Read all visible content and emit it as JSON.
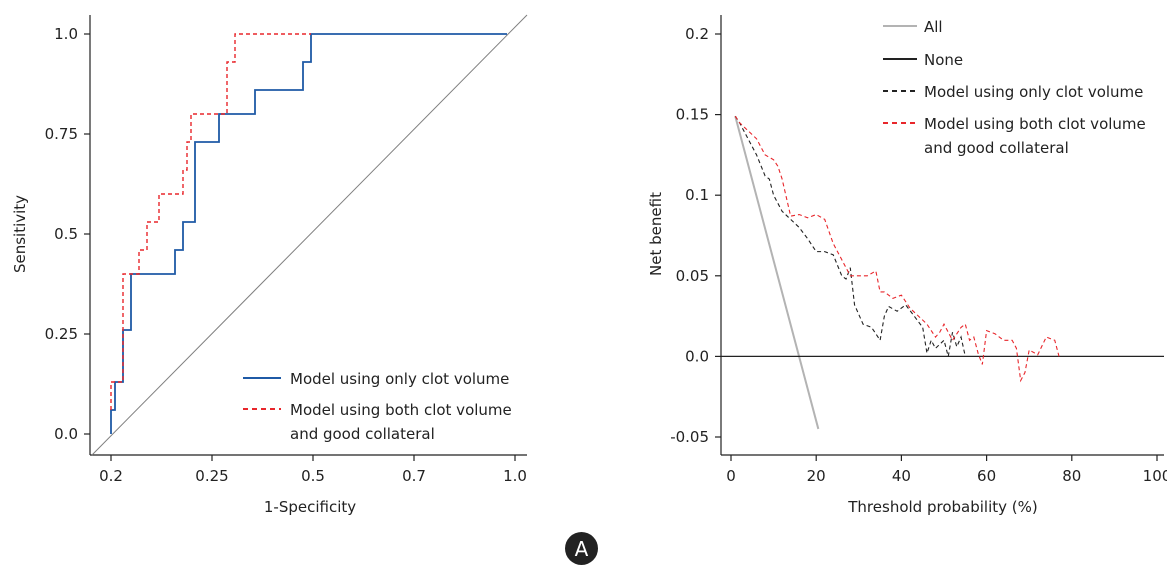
{
  "colors": {
    "roc_only_clot": "#1f5aa6",
    "roc_both": "#e8262b",
    "dca_all": "#b3b3b3",
    "dca_none": "#222222",
    "dca_only_clot": "#222222",
    "dca_both": "#e8262b",
    "diagonal": "#7f7f7f",
    "axis": "#222222"
  },
  "panel_label": "A",
  "chart_data": [
    {
      "type": "line",
      "chart": "roc",
      "xlabel": "1-Specificity",
      "ylabel": "Sensitivity",
      "x_tick_labels": [
        "0.2",
        "0.25",
        "0.5",
        "0.7",
        "1.0"
      ],
      "y_tick_labels": [
        "0.0",
        "0.25",
        "0.5",
        "0.75",
        "1.0"
      ],
      "ylim": [
        0,
        1
      ],
      "xlim": [
        0,
        1
      ],
      "legend_position": "bottom-right",
      "reference_line": {
        "x": [
          0,
          1
        ],
        "y": [
          0,
          1
        ]
      },
      "series": [
        {
          "name": "Model using only clot volume",
          "style": "solid",
          "x": [
            0.0,
            0.0,
            0.01,
            0.01,
            0.03,
            0.03,
            0.05,
            0.05,
            0.16,
            0.16,
            0.18,
            0.18,
            0.21,
            0.21,
            0.27,
            0.27,
            0.36,
            0.36,
            0.48,
            0.48,
            0.5,
            0.5,
            0.99
          ],
          "y": [
            0.0,
            0.06,
            0.06,
            0.13,
            0.13,
            0.26,
            0.26,
            0.4,
            0.4,
            0.46,
            0.46,
            0.53,
            0.53,
            0.73,
            0.73,
            0.8,
            0.8,
            0.86,
            0.86,
            0.93,
            0.93,
            1.0,
            1.0
          ]
        },
        {
          "name": "Model using both clot volume and good collateral",
          "label_lines": [
            "Model using both clot volume",
            "and good collateral"
          ],
          "style": "dashed",
          "x": [
            0.0,
            0.0,
            0.03,
            0.03,
            0.07,
            0.07,
            0.09,
            0.09,
            0.12,
            0.12,
            0.18,
            0.18,
            0.19,
            0.19,
            0.2,
            0.2,
            0.29,
            0.29,
            0.31,
            0.31,
            0.5
          ],
          "y": [
            0.06,
            0.13,
            0.13,
            0.4,
            0.4,
            0.46,
            0.46,
            0.53,
            0.53,
            0.6,
            0.6,
            0.66,
            0.66,
            0.73,
            0.73,
            0.8,
            0.8,
            0.93,
            0.93,
            1.0,
            1.0
          ]
        }
      ]
    },
    {
      "type": "line",
      "chart": "dca",
      "xlabel": "Threshold probability (%)",
      "ylabel": "Net benefit",
      "x_tick_labels": [
        "0",
        "20",
        "40",
        "60",
        "80",
        "100"
      ],
      "y_tick_labels": [
        "-0.05",
        "0.0",
        "0.05",
        "0.1",
        "0.15",
        "0.2"
      ],
      "x_ticks": [
        0,
        20,
        40,
        60,
        80,
        100
      ],
      "y_ticks": [
        -0.05,
        0.0,
        0.05,
        0.1,
        0.15,
        0.2
      ],
      "xlim": [
        -2,
        101
      ],
      "ylim": [
        -0.061,
        0.21
      ],
      "legend_position": "top-right",
      "series": [
        {
          "name": "All",
          "style": "solid-gray",
          "x": [
            1,
            20.5
          ],
          "y": [
            0.149,
            -0.045
          ]
        },
        {
          "name": "None",
          "style": "solid",
          "x": [
            0,
            100
          ],
          "y": [
            0,
            0
          ]
        },
        {
          "name": "Model using only clot volume",
          "style": "dashed-black",
          "x": [
            1,
            2,
            4,
            6,
            8,
            9,
            10,
            12,
            14,
            16,
            18,
            20,
            22,
            24,
            26,
            27,
            28,
            29,
            31,
            33,
            35,
            36,
            37,
            39,
            41,
            43,
            45,
            46,
            47,
            48,
            50,
            51,
            52,
            53,
            54,
            55
          ],
          "y": [
            0.149,
            0.145,
            0.135,
            0.125,
            0.112,
            0.11,
            0.1,
            0.09,
            0.085,
            0.08,
            0.073,
            0.065,
            0.065,
            0.063,
            0.05,
            0.048,
            0.055,
            0.032,
            0.02,
            0.018,
            0.01,
            0.025,
            0.031,
            0.028,
            0.032,
            0.025,
            0.018,
            0.002,
            0.01,
            0.005,
            0.01,
            0.0,
            0.015,
            0.006,
            0.012,
            0.0
          ]
        },
        {
          "name": "Model using both clot volume and good collateral",
          "label_lines": [
            "Model using both clot volume",
            "and good collateral"
          ],
          "style": "dashed-red",
          "x": [
            1,
            2,
            4,
            6,
            8,
            10,
            11,
            12,
            14,
            16,
            18,
            20,
            22,
            24,
            26,
            28,
            30,
            32,
            34,
            35,
            36,
            38,
            40,
            42,
            44,
            46,
            47,
            48,
            49,
            50,
            52,
            54,
            55,
            56,
            57,
            58,
            59,
            60,
            62,
            64,
            66,
            67,
            68,
            69,
            70,
            72,
            74,
            76,
            77
          ],
          "y": [
            0.149,
            0.145,
            0.14,
            0.135,
            0.125,
            0.122,
            0.118,
            0.11,
            0.087,
            0.088,
            0.086,
            0.088,
            0.085,
            0.07,
            0.06,
            0.05,
            0.05,
            0.05,
            0.053,
            0.04,
            0.04,
            0.036,
            0.038,
            0.03,
            0.025,
            0.02,
            0.016,
            0.012,
            0.015,
            0.02,
            0.01,
            0.018,
            0.02,
            0.01,
            0.012,
            0.002,
            -0.005,
            0.016,
            0.014,
            0.01,
            0.01,
            0.005,
            -0.015,
            -0.01,
            0.004,
            0.001,
            0.012,
            0.01,
            0.0
          ]
        }
      ]
    }
  ]
}
